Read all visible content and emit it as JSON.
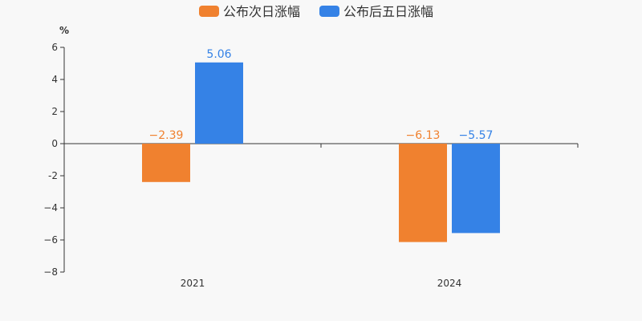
{
  "chart_data": {
    "type": "bar",
    "title": "",
    "xlabel": "",
    "ylabel": "%",
    "categories": [
      "2021",
      "2024"
    ],
    "series": [
      {
        "name": "公布次日涨幅",
        "values": [
          -2.39,
          -6.13
        ],
        "labels": [
          "−2.39",
          "−6.13"
        ],
        "color": "#f0812f"
      },
      {
        "name": "公布后五日涨幅",
        "values": [
          5.06,
          -5.57
        ],
        "labels": [
          "5.06",
          "−5.57"
        ],
        "color": "#3582e6"
      }
    ],
    "ylim": [
      -8,
      6
    ],
    "yticks": [
      {
        "value": 6,
        "label": "6"
      },
      {
        "value": 4,
        "label": "4"
      },
      {
        "value": 2,
        "label": "2"
      },
      {
        "value": 0,
        "label": "0"
      },
      {
        "value": -2,
        "label": "-2"
      },
      {
        "value": -4,
        "label": "−4"
      },
      {
        "value": -6,
        "label": "−6"
      },
      {
        "value": -8,
        "label": "−8"
      }
    ],
    "grid": false,
    "legend_position": "top-center"
  }
}
